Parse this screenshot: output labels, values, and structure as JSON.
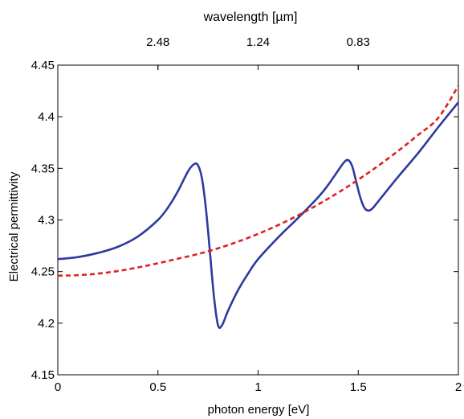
{
  "chart_data": {
    "type": "line",
    "title": "",
    "xlabel": "photon energy [eV]",
    "ylabel": "Electrical permittivity",
    "top_xlabel": "wavelength [µm]",
    "xlim": [
      0,
      2
    ],
    "ylim": [
      4.15,
      4.45
    ],
    "x_ticks": [
      0,
      0.5,
      1,
      1.5,
      2
    ],
    "x_tick_labels": [
      "0",
      "0.5",
      "1",
      "1.5",
      "2"
    ],
    "y_ticks": [
      4.15,
      4.2,
      4.25,
      4.3,
      4.35,
      4.4,
      4.45
    ],
    "y_tick_labels": [
      "4.15",
      "4.2",
      "4.25",
      "4.3",
      "4.35",
      "4.4",
      "4.45"
    ],
    "top_ticks": [
      {
        "energy": 0.5,
        "label": "2.48"
      },
      {
        "energy": 1.0,
        "label": "1.24"
      },
      {
        "energy": 1.5,
        "label": "0.83"
      }
    ],
    "grid": false,
    "series": [
      {
        "style": "solid",
        "color": "#2e3a9e",
        "x": [
          0,
          0.1,
          0.2,
          0.3,
          0.4,
          0.5,
          0.55,
          0.6,
          0.65,
          0.68,
          0.7,
          0.72,
          0.74,
          0.76,
          0.78,
          0.8,
          0.82,
          0.85,
          0.9,
          0.95,
          1.0,
          1.1,
          1.2,
          1.3,
          1.35,
          1.4,
          1.43,
          1.45,
          1.47,
          1.49,
          1.51,
          1.53,
          1.55,
          1.57,
          1.6,
          1.7,
          1.8,
          1.9,
          2.0
        ],
        "y": [
          4.262,
          4.264,
          4.268,
          4.274,
          4.284,
          4.3,
          4.312,
          4.328,
          4.347,
          4.354,
          4.353,
          4.34,
          4.31,
          4.268,
          4.225,
          4.198,
          4.198,
          4.212,
          4.232,
          4.248,
          4.262,
          4.283,
          4.302,
          4.322,
          4.334,
          4.348,
          4.356,
          4.358,
          4.352,
          4.337,
          4.322,
          4.312,
          4.309,
          4.311,
          4.318,
          4.342,
          4.365,
          4.39,
          4.414
        ]
      },
      {
        "style": "dashed",
        "color": "#e02020",
        "x": [
          0,
          0.1,
          0.2,
          0.3,
          0.4,
          0.5,
          0.6,
          0.7,
          0.8,
          0.9,
          1.0,
          1.1,
          1.2,
          1.3,
          1.4,
          1.5,
          1.6,
          1.7,
          1.8,
          1.9,
          2.0
        ],
        "y": [
          4.246,
          4.2465,
          4.248,
          4.2505,
          4.254,
          4.258,
          4.2625,
          4.267,
          4.2725,
          4.279,
          4.2865,
          4.295,
          4.3045,
          4.315,
          4.3265,
          4.339,
          4.3525,
          4.367,
          4.3825,
          4.399,
          4.43
        ]
      }
    ]
  }
}
